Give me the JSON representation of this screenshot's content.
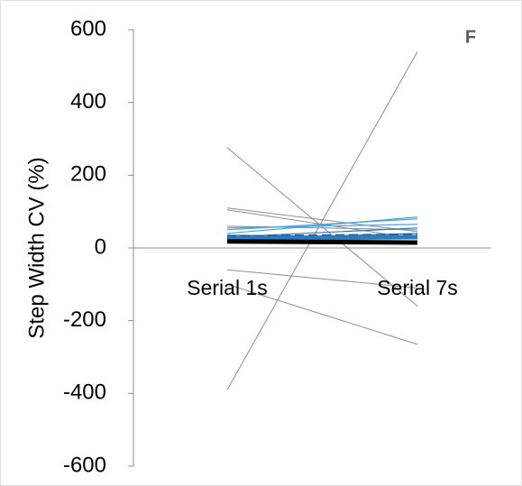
{
  "chart_data": {
    "type": "line",
    "panel_label": "F",
    "y_label": "Step Width CV (%)",
    "categories": [
      "Serial 1s",
      "Serial 7s"
    ],
    "ylim": [
      -600,
      600
    ],
    "yticks": [
      -600,
      -400,
      -200,
      0,
      200,
      400,
      600
    ],
    "series": [
      {
        "color": "#8c8c8c",
        "width": 1,
        "values": [
          276,
          -160
        ]
      },
      {
        "color": "#8c8c8c",
        "width": 1,
        "values": [
          -390,
          540
        ]
      },
      {
        "color": "#8c8c8c",
        "width": 1,
        "values": [
          -60,
          -110
        ]
      },
      {
        "color": "#8c8c8c",
        "width": 1,
        "values": [
          -100,
          -265
        ]
      },
      {
        "color": "#8c8c8c",
        "width": 1,
        "values": [
          110,
          45
        ]
      },
      {
        "color": "#8c8c8c",
        "width": 1,
        "values": [
          105,
          25
        ]
      },
      {
        "color": "#8c8c8c",
        "width": 1,
        "values": [
          60,
          50
        ]
      },
      {
        "color": "#4aa3df",
        "width": 1.2,
        "values": [
          50,
          80
        ]
      },
      {
        "color": "#4aa3df",
        "width": 1.2,
        "values": [
          55,
          65
        ]
      },
      {
        "color": "#4aa3df",
        "width": 1.2,
        "values": [
          40,
          85
        ]
      },
      {
        "color": "#2e75b6",
        "width": 1.2,
        "values": [
          30,
          55
        ]
      },
      {
        "color": "#2e75b6",
        "width": 1.2,
        "values": [
          25,
          40
        ]
      },
      {
        "color": "#2e75b6",
        "width": 1.2,
        "values": [
          35,
          30
        ]
      },
      {
        "color": "#1f5fa0",
        "width": 4,
        "dashed": true,
        "values": [
          30,
          35
        ]
      },
      {
        "color": "#2b7bc0",
        "width": 5,
        "values": [
          25,
          30
        ]
      },
      {
        "color": "#000000",
        "width": 5,
        "values": [
          18,
          15
        ]
      }
    ]
  }
}
